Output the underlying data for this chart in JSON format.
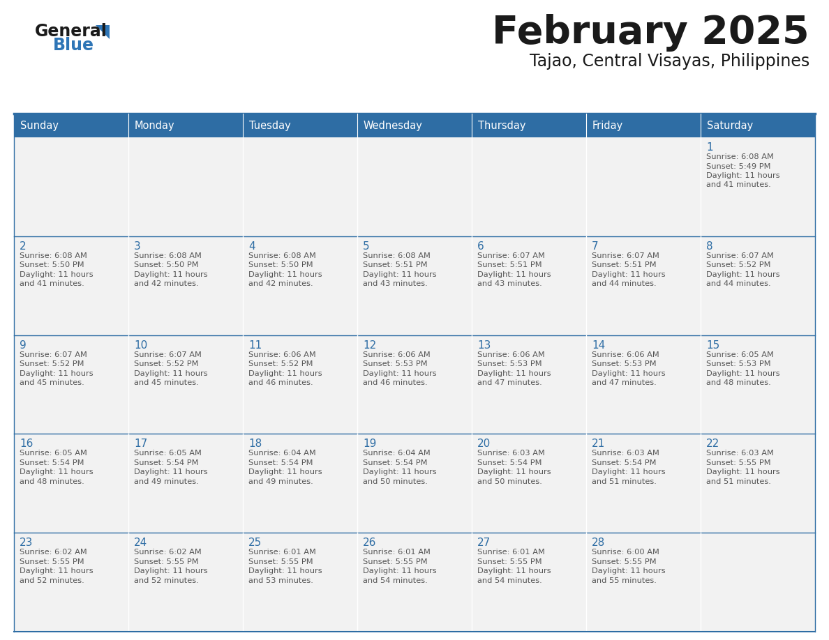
{
  "title": "February 2025",
  "subtitle": "Tajao, Central Visayas, Philippines",
  "days_of_week": [
    "Sunday",
    "Monday",
    "Tuesday",
    "Wednesday",
    "Thursday",
    "Friday",
    "Saturday"
  ],
  "header_bg": "#2E6DA4",
  "header_text": "#FFFFFF",
  "cell_bg": "#F2F2F2",
  "border_color": "#2E6DA4",
  "day_num_color": "#2E6DA4",
  "text_color": "#555555",
  "logo_general_color": "#1a1a1a",
  "logo_blue_color": "#2E75B6",
  "calendar_data": [
    [
      null,
      null,
      null,
      null,
      null,
      null,
      {
        "day": 1,
        "sunrise": "6:08 AM",
        "sunset": "5:49 PM",
        "daylight": "11 hours and 41 minutes."
      }
    ],
    [
      {
        "day": 2,
        "sunrise": "6:08 AM",
        "sunset": "5:50 PM",
        "daylight": "11 hours and 41 minutes."
      },
      {
        "day": 3,
        "sunrise": "6:08 AM",
        "sunset": "5:50 PM",
        "daylight": "11 hours and 42 minutes."
      },
      {
        "day": 4,
        "sunrise": "6:08 AM",
        "sunset": "5:50 PM",
        "daylight": "11 hours and 42 minutes."
      },
      {
        "day": 5,
        "sunrise": "6:08 AM",
        "sunset": "5:51 PM",
        "daylight": "11 hours and 43 minutes."
      },
      {
        "day": 6,
        "sunrise": "6:07 AM",
        "sunset": "5:51 PM",
        "daylight": "11 hours and 43 minutes."
      },
      {
        "day": 7,
        "sunrise": "6:07 AM",
        "sunset": "5:51 PM",
        "daylight": "11 hours and 44 minutes."
      },
      {
        "day": 8,
        "sunrise": "6:07 AM",
        "sunset": "5:52 PM",
        "daylight": "11 hours and 44 minutes."
      }
    ],
    [
      {
        "day": 9,
        "sunrise": "6:07 AM",
        "sunset": "5:52 PM",
        "daylight": "11 hours and 45 minutes."
      },
      {
        "day": 10,
        "sunrise": "6:07 AM",
        "sunset": "5:52 PM",
        "daylight": "11 hours and 45 minutes."
      },
      {
        "day": 11,
        "sunrise": "6:06 AM",
        "sunset": "5:52 PM",
        "daylight": "11 hours and 46 minutes."
      },
      {
        "day": 12,
        "sunrise": "6:06 AM",
        "sunset": "5:53 PM",
        "daylight": "11 hours and 46 minutes."
      },
      {
        "day": 13,
        "sunrise": "6:06 AM",
        "sunset": "5:53 PM",
        "daylight": "11 hours and 47 minutes."
      },
      {
        "day": 14,
        "sunrise": "6:06 AM",
        "sunset": "5:53 PM",
        "daylight": "11 hours and 47 minutes."
      },
      {
        "day": 15,
        "sunrise": "6:05 AM",
        "sunset": "5:53 PM",
        "daylight": "11 hours and 48 minutes."
      }
    ],
    [
      {
        "day": 16,
        "sunrise": "6:05 AM",
        "sunset": "5:54 PM",
        "daylight": "11 hours and 48 minutes."
      },
      {
        "day": 17,
        "sunrise": "6:05 AM",
        "sunset": "5:54 PM",
        "daylight": "11 hours and 49 minutes."
      },
      {
        "day": 18,
        "sunrise": "6:04 AM",
        "sunset": "5:54 PM",
        "daylight": "11 hours and 49 minutes."
      },
      {
        "day": 19,
        "sunrise": "6:04 AM",
        "sunset": "5:54 PM",
        "daylight": "11 hours and 50 minutes."
      },
      {
        "day": 20,
        "sunrise": "6:03 AM",
        "sunset": "5:54 PM",
        "daylight": "11 hours and 50 minutes."
      },
      {
        "day": 21,
        "sunrise": "6:03 AM",
        "sunset": "5:54 PM",
        "daylight": "11 hours and 51 minutes."
      },
      {
        "day": 22,
        "sunrise": "6:03 AM",
        "sunset": "5:55 PM",
        "daylight": "11 hours and 51 minutes."
      }
    ],
    [
      {
        "day": 23,
        "sunrise": "6:02 AM",
        "sunset": "5:55 PM",
        "daylight": "11 hours and 52 minutes."
      },
      {
        "day": 24,
        "sunrise": "6:02 AM",
        "sunset": "5:55 PM",
        "daylight": "11 hours and 52 minutes."
      },
      {
        "day": 25,
        "sunrise": "6:01 AM",
        "sunset": "5:55 PM",
        "daylight": "11 hours and 53 minutes."
      },
      {
        "day": 26,
        "sunrise": "6:01 AM",
        "sunset": "5:55 PM",
        "daylight": "11 hours and 54 minutes."
      },
      {
        "day": 27,
        "sunrise": "6:01 AM",
        "sunset": "5:55 PM",
        "daylight": "11 hours and 54 minutes."
      },
      {
        "day": 28,
        "sunrise": "6:00 AM",
        "sunset": "5:55 PM",
        "daylight": "11 hours and 55 minutes."
      },
      null
    ]
  ]
}
